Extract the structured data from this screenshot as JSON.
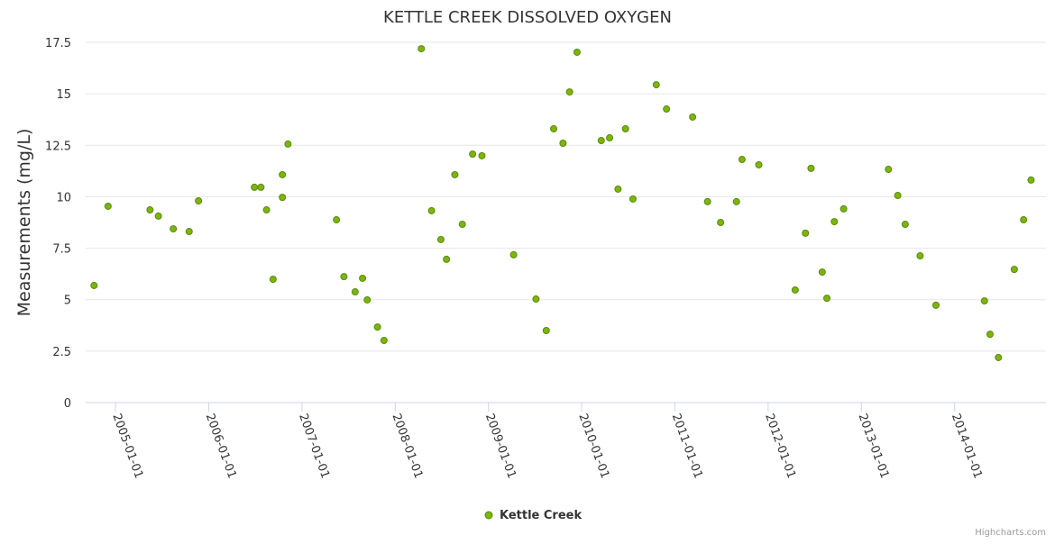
{
  "chart_data": {
    "type": "scatter",
    "title": "KETTLE CREEK DISSOLVED OXYGEN",
    "xlabel": "",
    "ylabel": "Measurements (mg/L)",
    "xlim": [
      2004.68,
      2014.98
    ],
    "ylim": [
      0,
      17.5
    ],
    "yticks": [
      0,
      2.5,
      5,
      7.5,
      10,
      12.5,
      15,
      17.5
    ],
    "ytick_labels": [
      "0",
      "2.5",
      "5",
      "7.5",
      "10",
      "12.5",
      "15",
      "17.5"
    ],
    "xticks": [
      2005,
      2006,
      2007,
      2008,
      2009,
      2010,
      2011,
      2012,
      2013,
      2014
    ],
    "xtick_labels": [
      "2005-01-01",
      "2006-01-01",
      "2007-01-01",
      "2008-01-01",
      "2009-01-01",
      "2010-01-01",
      "2011-01-01",
      "2012-01-01",
      "2013-01-01",
      "2014-01-01"
    ],
    "grid": true,
    "legend_position": "bottom-center",
    "series": [
      {
        "name": "Kettle Creek",
        "color": "#7cb50e",
        "x": [
          2004.77,
          2004.92,
          2005.37,
          2005.46,
          2005.62,
          2005.79,
          2005.89,
          2006.49,
          2006.56,
          2006.62,
          2006.69,
          2006.79,
          2006.79,
          2006.85,
          2007.37,
          2007.45,
          2007.57,
          2007.65,
          2007.7,
          2007.81,
          2007.88,
          2008.28,
          2008.39,
          2008.49,
          2008.55,
          2008.64,
          2008.72,
          2008.83,
          2008.93,
          2009.27,
          2009.51,
          2009.62,
          2009.7,
          2009.8,
          2009.87,
          2009.95,
          2010.21,
          2010.3,
          2010.39,
          2010.47,
          2010.55,
          2010.8,
          2010.91,
          2011.19,
          2011.35,
          2011.49,
          2011.66,
          2011.72,
          2011.9,
          2012.29,
          2012.4,
          2012.46,
          2012.58,
          2012.63,
          2012.71,
          2012.81,
          2013.29,
          2013.39,
          2013.47,
          2013.63,
          2013.8,
          2014.32,
          2014.38,
          2014.47,
          2014.64,
          2014.74,
          2014.82
        ],
        "y": [
          5.69,
          9.54,
          9.36,
          9.06,
          8.44,
          8.31,
          9.8,
          10.46,
          10.46,
          9.36,
          5.99,
          11.07,
          9.97,
          12.56,
          8.88,
          6.12,
          5.38,
          6.04,
          4.99,
          3.67,
          3.02,
          17.19,
          9.32,
          7.92,
          6.96,
          11.07,
          8.66,
          12.07,
          11.99,
          7.18,
          5.03,
          3.5,
          13.3,
          12.6,
          15.09,
          17.02,
          12.73,
          12.86,
          10.37,
          13.3,
          9.89,
          15.44,
          14.26,
          13.87,
          9.76,
          8.75,
          9.76,
          11.81,
          11.55,
          5.47,
          8.23,
          11.38,
          6.34,
          5.07,
          8.79,
          9.41,
          11.33,
          10.06,
          8.66,
          7.13,
          4.73,
          4.94,
          3.32,
          2.19,
          6.47,
          8.88,
          10.81
        ]
      }
    ]
  },
  "credits": "Highcharts.com"
}
